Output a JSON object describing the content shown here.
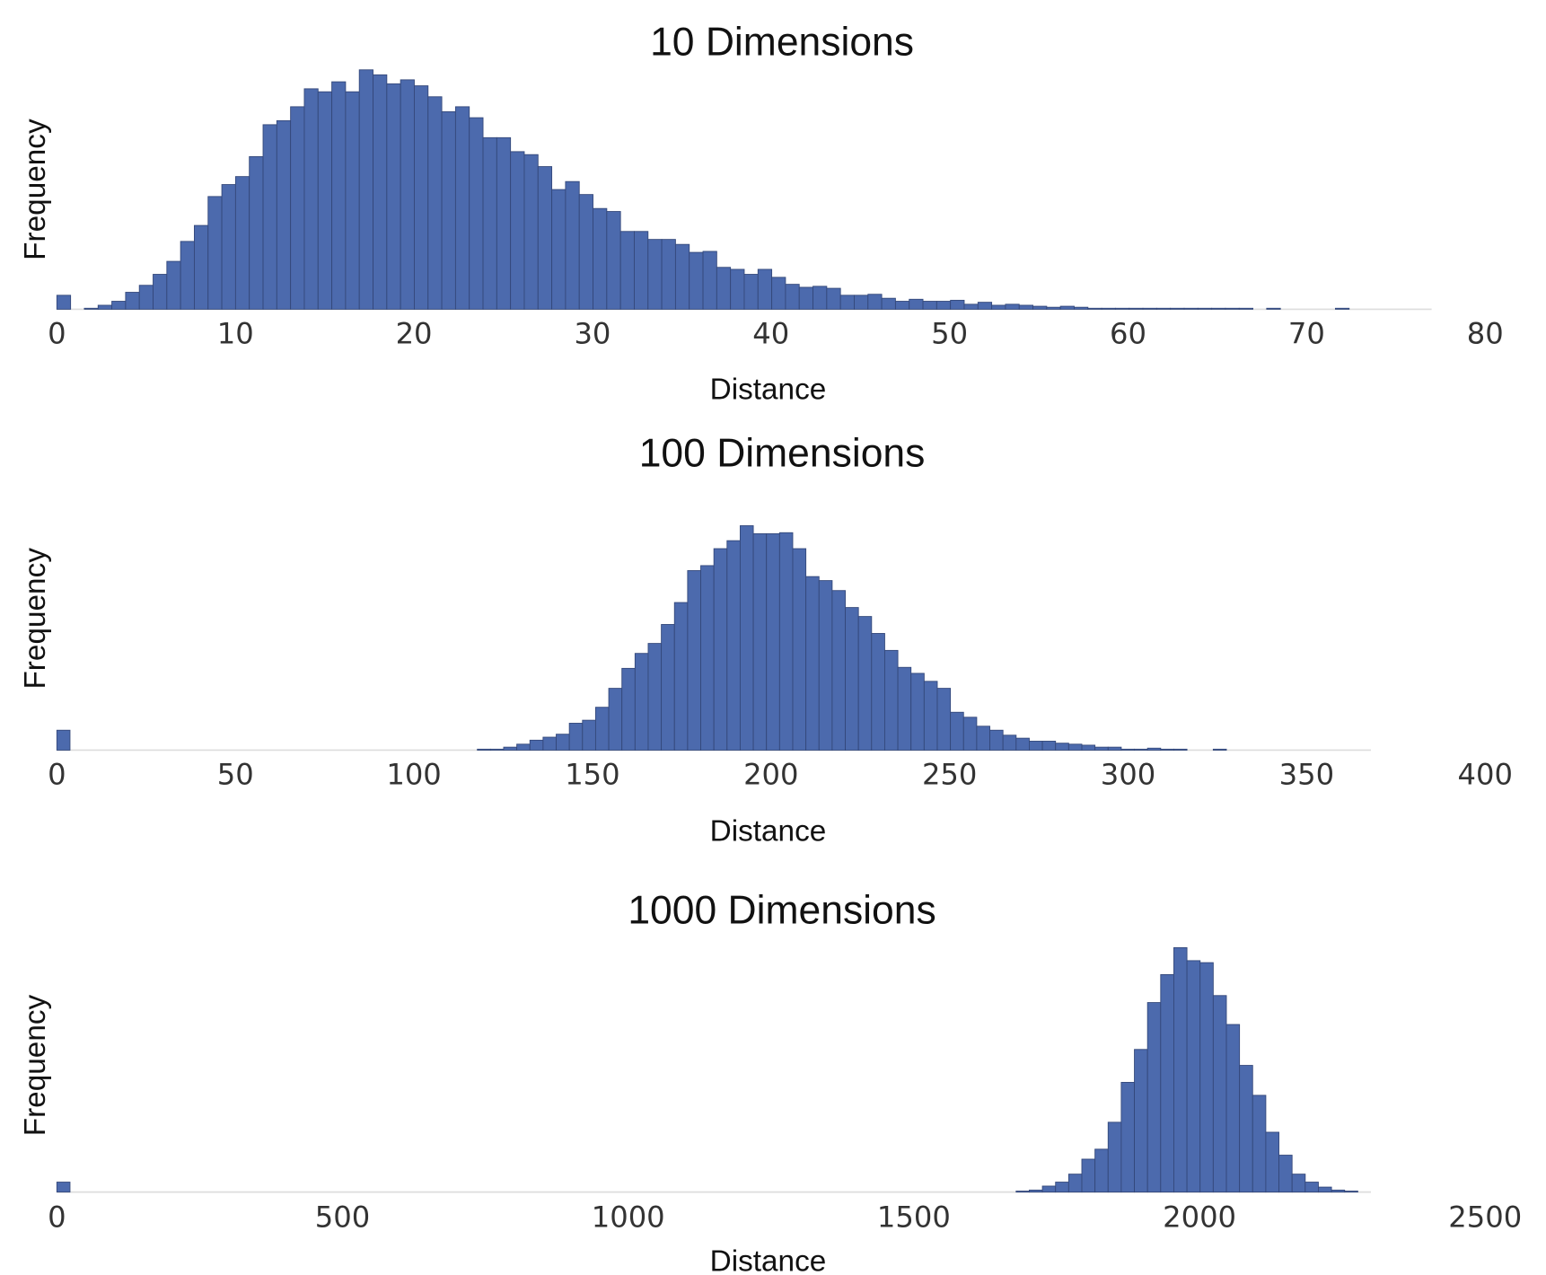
{
  "chart_data": [
    {
      "type": "histogram",
      "title": "10 Dimensions",
      "x_label": "Distance",
      "y_label": "Frequency",
      "color": "#4c6aad",
      "xlim": [
        0,
        80
      ],
      "xticks": [
        0,
        10,
        20,
        30,
        40,
        50,
        60,
        70,
        80
      ],
      "ylim": [
        0,
        240
      ],
      "bins": [
        0,
        0.77,
        1.54,
        2.31,
        3.08,
        3.85,
        4.62,
        5.39,
        6.16,
        6.93,
        7.7,
        8.47,
        9.24,
        10.01,
        10.78,
        11.55,
        12.32,
        13.09,
        13.86,
        14.63,
        15.4,
        16.17,
        16.94,
        17.71,
        18.48,
        19.25,
        20.02,
        20.79,
        21.56,
        22.33,
        23.1,
        23.87,
        24.64,
        25.41,
        26.18,
        26.95,
        27.72,
        28.49,
        29.26,
        30.03,
        30.8,
        31.57,
        32.34,
        33.11,
        33.88,
        34.65,
        35.42,
        36.19,
        36.96,
        37.73,
        38.5,
        39.27,
        40.04,
        40.81,
        41.58,
        42.35,
        43.12,
        43.89,
        44.66,
        45.43,
        46.2,
        46.97,
        47.74,
        48.51,
        49.28,
        50.05,
        50.82,
        51.59,
        52.36,
        53.13,
        53.9,
        54.67,
        55.44,
        56.21,
        56.98,
        57.75,
        58.52,
        59.29,
        60.06,
        60.83,
        61.6,
        62.37,
        63.14,
        63.91,
        64.68,
        65.45,
        66.22,
        66.99,
        67.76,
        68.53,
        69.3,
        70.07,
        70.84,
        71.61,
        72.38,
        73.15,
        73.92,
        74.69,
        75.46,
        76.23,
        77
      ],
      "values": [
        14,
        0,
        1,
        4,
        8,
        17,
        24,
        35,
        48,
        68,
        84,
        113,
        125,
        133,
        153,
        185,
        189,
        203,
        221,
        218,
        228,
        218,
        240,
        235,
        226,
        230,
        224,
        213,
        198,
        203,
        192,
        172,
        172,
        158,
        155,
        143,
        120,
        128,
        115,
        101,
        98,
        78,
        78,
        70,
        70,
        65,
        57,
        58,
        42,
        40,
        35,
        40,
        32,
        25,
        22,
        23,
        21,
        14,
        14,
        15,
        11,
        8,
        10,
        8,
        8,
        9,
        5,
        7,
        4,
        5,
        4,
        3,
        2,
        3,
        2,
        1,
        1,
        1,
        1,
        1,
        1,
        1,
        1,
        1,
        1,
        1,
        1,
        0,
        1,
        0,
        0,
        0,
        0,
        1,
        0,
        0,
        0,
        0,
        0,
        0
      ]
    },
    {
      "type": "histogram",
      "title": "100 Dimensions",
      "x_label": "Distance",
      "y_label": "Frequency",
      "color": "#4c6aad",
      "xlim": [
        0,
        400
      ],
      "xticks": [
        0,
        50,
        100,
        150,
        200,
        250,
        300,
        350,
        400
      ],
      "ylim": [
        0,
        225
      ],
      "bins": [
        0,
        3.68,
        7.36,
        11.04,
        14.72,
        18.4,
        22.08,
        25.76,
        29.44,
        33.12,
        36.8,
        40.48,
        44.16,
        47.84,
        51.52,
        55.2,
        58.88,
        62.56,
        66.24,
        69.92,
        73.6,
        77.28,
        80.96,
        84.64,
        88.32,
        92,
        95.68,
        99.36,
        103.04,
        106.72,
        110.4,
        114.08,
        117.76,
        121.44,
        125.12,
        128.8,
        132.48,
        136.16,
        139.84,
        143.52,
        147.2,
        150.88,
        154.56,
        158.24,
        161.92,
        165.6,
        169.28,
        172.96,
        176.64,
        180.32,
        184,
        187.68,
        191.36,
        195.04,
        198.72,
        202.4,
        206.08,
        209.76,
        213.44,
        217.12,
        220.8,
        224.48,
        228.16,
        231.84,
        235.52,
        239.2,
        242.88,
        246.56,
        250.24,
        253.92,
        257.6,
        261.28,
        264.96,
        268.64,
        272.32,
        276,
        279.68,
        283.36,
        287.04,
        290.72,
        294.4,
        298.08,
        301.76,
        305.44,
        309.12,
        312.8,
        316.48,
        320.16,
        323.84,
        327.52,
        331.2,
        334.88,
        338.56,
        342.24,
        345.92,
        349.6,
        353.28,
        356.96,
        360.64,
        364.32,
        368
      ],
      "values": [
        20,
        0,
        0,
        0,
        0,
        0,
        0,
        0,
        0,
        0,
        0,
        0,
        0,
        0,
        0,
        0,
        0,
        0,
        0,
        0,
        0,
        0,
        0,
        0,
        0,
        0,
        0,
        0,
        0,
        0,
        0,
        0,
        1,
        1,
        3,
        6,
        10,
        13,
        16,
        27,
        30,
        43,
        62,
        82,
        97,
        107,
        126,
        148,
        180,
        185,
        202,
        210,
        225,
        217,
        217,
        218,
        202,
        174,
        170,
        160,
        143,
        134,
        117,
        100,
        83,
        77,
        69,
        62,
        38,
        33,
        24,
        20,
        15,
        12,
        9,
        9,
        7,
        6,
        5,
        3,
        3,
        1,
        1,
        2,
        1,
        1,
        0,
        0,
        1,
        0,
        0,
        0,
        0,
        0,
        0,
        0,
        0,
        0,
        0,
        0
      ]
    },
    {
      "type": "histogram",
      "title": "1000 Dimensions",
      "x_label": "Distance",
      "y_label": "Frequency",
      "color": "#4c6aad",
      "xlim": [
        0,
        2500
      ],
      "xticks": [
        0,
        500,
        1000,
        1500,
        2000,
        2500
      ],
      "ylim": [
        0,
        245
      ],
      "bins": [
        0,
        23,
        46,
        69,
        92,
        115,
        138,
        161,
        184,
        207,
        230,
        253,
        276,
        299,
        322,
        345,
        368,
        391,
        414,
        437,
        460,
        483,
        506,
        529,
        552,
        575,
        598,
        621,
        644,
        667,
        690,
        713,
        736,
        759,
        782,
        805,
        828,
        851,
        874,
        897,
        920,
        943,
        966,
        989,
        1012,
        1035,
        1058,
        1081,
        1104,
        1127,
        1150,
        1173,
        1196,
        1219,
        1242,
        1265,
        1288,
        1311,
        1334,
        1357,
        1380,
        1403,
        1426,
        1449,
        1472,
        1495,
        1518,
        1541,
        1564,
        1587,
        1610,
        1633,
        1656,
        1679,
        1702,
        1725,
        1748,
        1771,
        1794,
        1817,
        1840,
        1863,
        1886,
        1909,
        1932,
        1955,
        1978,
        2001,
        2024,
        2047,
        2070,
        2093,
        2116,
        2139,
        2162,
        2185,
        2208,
        2231,
        2254,
        2277,
        2300
      ],
      "values": [
        10,
        0,
        0,
        0,
        0,
        0,
        0,
        0,
        0,
        0,
        0,
        0,
        0,
        0,
        0,
        0,
        0,
        0,
        0,
        0,
        0,
        0,
        0,
        0,
        0,
        0,
        0,
        0,
        0,
        0,
        0,
        0,
        0,
        0,
        0,
        0,
        0,
        0,
        0,
        0,
        0,
        0,
        0,
        0,
        0,
        0,
        0,
        0,
        0,
        0,
        0,
        0,
        0,
        0,
        0,
        0,
        0,
        0,
        0,
        0,
        0,
        0,
        0,
        0,
        0,
        0,
        0,
        0,
        0,
        0,
        0,
        0,
        0,
        1,
        2,
        6,
        10,
        18,
        33,
        43,
        70,
        110,
        143,
        190,
        218,
        245,
        232,
        230,
        197,
        168,
        127,
        97,
        60,
        37,
        18,
        10,
        5,
        2,
        1,
        0
      ]
    }
  ]
}
